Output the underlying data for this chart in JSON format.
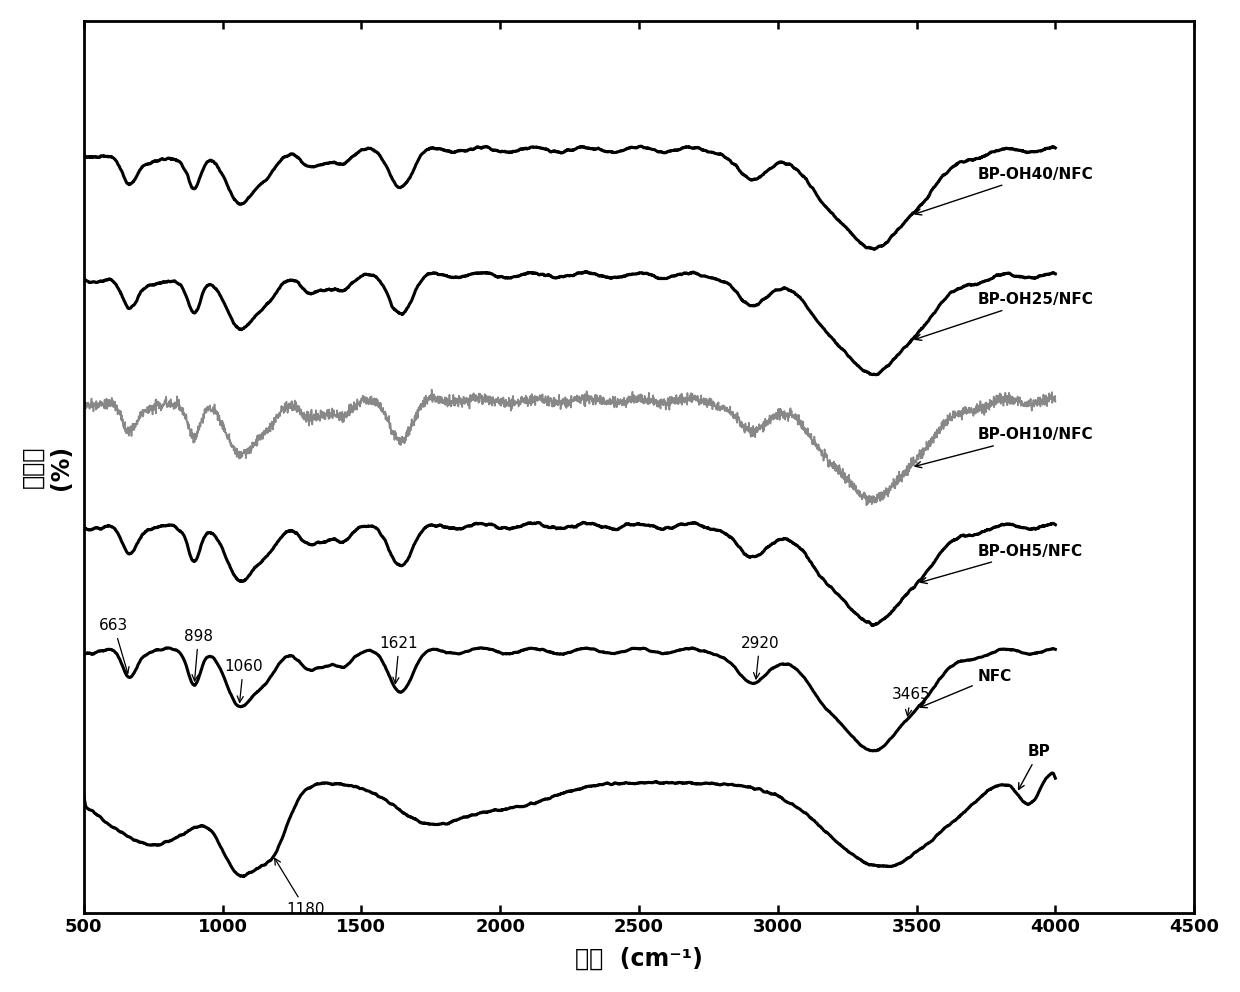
{
  "xmin": 500,
  "xmax": 4500,
  "xticks": [
    500,
    1000,
    1500,
    2000,
    2500,
    3000,
    3500,
    4000,
    4500
  ],
  "xlabel_cn": "波数",
  "xlabel_unit": "(cm⁻¹)",
  "ylabel_cn": "透过率",
  "ylabel_unit": "(%)",
  "series_order": [
    "BP-OH40/NFC",
    "BP-OH25/NFC",
    "BP-OH10/NFC",
    "BP-OH5/NFC",
    "NFC",
    "BP"
  ]
}
